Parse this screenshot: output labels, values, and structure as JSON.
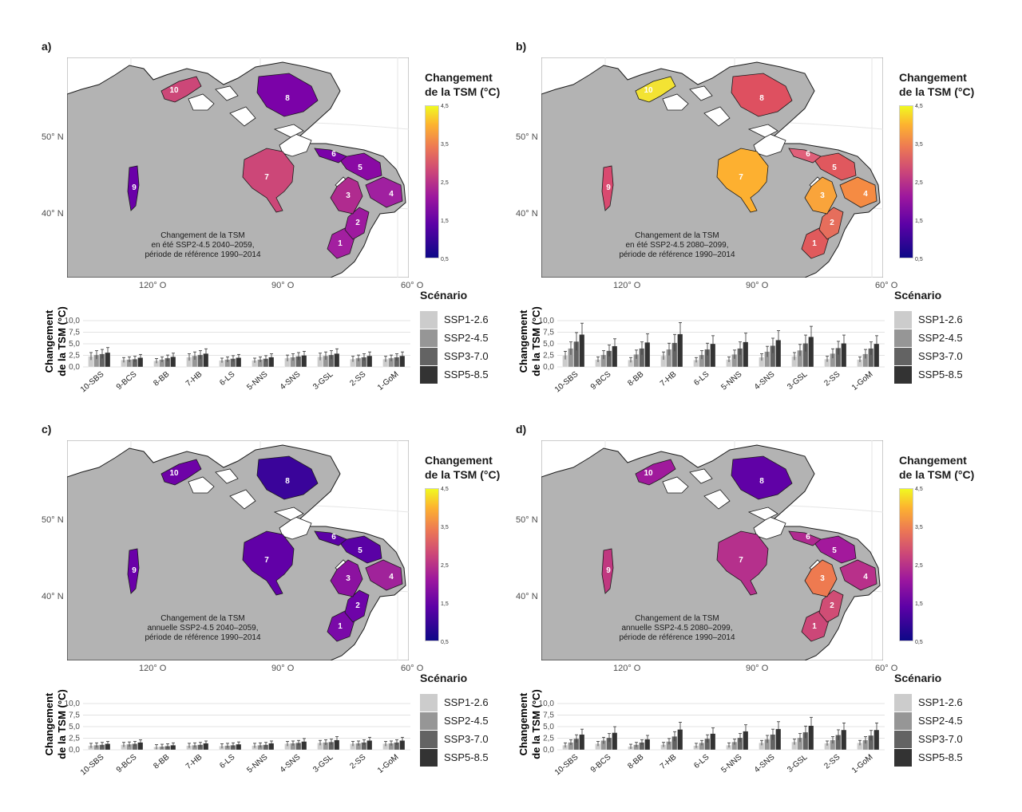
{
  "colorbar": {
    "title_line1": "Changement",
    "title_line2": "de la TSM (°C)",
    "ticks": [
      "4,5",
      "3,5",
      "2,5",
      "1,5",
      "0,5"
    ]
  },
  "lat_labels": [
    "50° N",
    "40° N"
  ],
  "lon_labels": [
    "120° O",
    "90° O",
    "60° O"
  ],
  "bar_ylabel_line1": "Changement",
  "bar_ylabel_line2": "de la TSM (°C)",
  "bar_yticks": [
    "10,0",
    "7,5",
    "5,0",
    "2,5",
    "0,0"
  ],
  "legend": {
    "title": "Scénario",
    "items": [
      "SSP1-2.6",
      "SSP2-4.5",
      "SSP3-7.0",
      "SSP5-8.5"
    ],
    "colors": [
      "#cccccc",
      "#969696",
      "#636363",
      "#333333"
    ]
  },
  "panels": [
    {
      "label": "a)",
      "caption": [
        "Changement de la TSM",
        "en été SSP2-4.5 2040–2059,",
        "période de référence 1990–2014"
      ],
      "region_colors": {
        "1": "#a31fa0",
        "2": "#9e1a9f",
        "3": "#b02b8f",
        "4": "#a020a0",
        "5": "#8a0aa4",
        "6": "#7a02a8",
        "7": "#cc4778",
        "8": "#7b02a8",
        "9": "#6a00a8",
        "10": "#cc4778"
      }
    },
    {
      "label": "b)",
      "caption": [
        "Changement de la TSM",
        "en été SSP2-4.5 2080–2099,",
        "période de référence 1990–2014"
      ],
      "region_colors": {
        "1": "#e05a5c",
        "2": "#e66e5c",
        "3": "#f9a43b",
        "4": "#f58b43",
        "5": "#e0585e",
        "6": "#e0607a",
        "7": "#fdb030",
        "8": "#de5060",
        "9": "#d94a70",
        "10": "#f3e333"
      }
    },
    {
      "label": "c)",
      "caption": [
        "Changement de la TSM",
        "annuelle SSP2-4.5 2040–2059,",
        "période de référence 1990–2014"
      ],
      "region_colors": {
        "1": "#7a0aa8",
        "2": "#6e03a8",
        "3": "#8c12a0",
        "4": "#a0239a",
        "5": "#5a01a5",
        "6": "#5c01a6",
        "7": "#6100a7",
        "8": "#3a049a",
        "9": "#6a00a8",
        "10": "#6e02a7"
      }
    },
    {
      "label": "d)",
      "caption": [
        "Changement de la TSM",
        "annuelle SSP2-4.5 2080–2099,",
        "période de référence 1990–2014"
      ],
      "region_colors": {
        "1": "#cc4778",
        "2": "#d04d75",
        "3": "#ee7a50",
        "4": "#b8308a",
        "5": "#a3199c",
        "6": "#b02a90",
        "7": "#b5308c",
        "8": "#6001a6",
        "9": "#c03880",
        "10": "#a01a9c"
      }
    }
  ],
  "chart_data": [
    {
      "type": "bar",
      "panel": "a",
      "categories": [
        "10-SBS",
        "9-BCS",
        "8-BB",
        "7-HB",
        "6-LS",
        "5-NNS",
        "4-SNS",
        "3-GSL",
        "2-SS",
        "1-GoM"
      ],
      "ylim": [
        0,
        10
      ],
      "series": [
        {
          "name": "SSP1-2.6",
          "values": [
            2.3,
            1.5,
            1.3,
            2.1,
            1.4,
            1.4,
            1.9,
            2.2,
            1.7,
            1.7
          ]
        },
        {
          "name": "SSP2-4.5",
          "values": [
            2.6,
            1.6,
            1.6,
            2.4,
            1.6,
            1.6,
            2.1,
            2.4,
            1.9,
            1.9
          ]
        },
        {
          "name": "SSP3-7.0",
          "values": [
            2.8,
            1.7,
            1.9,
            2.6,
            1.8,
            1.8,
            2.3,
            2.6,
            2.1,
            2.1
          ]
        },
        {
          "name": "SSP5-8.5",
          "values": [
            3.1,
            2.0,
            2.2,
            2.9,
            2.0,
            2.1,
            2.5,
            2.9,
            2.4,
            2.4
          ]
        }
      ]
    },
    {
      "type": "bar",
      "panel": "b",
      "categories": [
        "10-SBS",
        "9-BCS",
        "8-BB",
        "7-HB",
        "6-LS",
        "5-NNS",
        "4-SNS",
        "3-GSL",
        "2-SS",
        "1-GoM"
      ],
      "ylim": [
        0,
        10
      ],
      "series": [
        {
          "name": "SSP1-2.6",
          "values": [
            2.5,
            1.6,
            1.5,
            2.4,
            1.5,
            1.6,
            2.1,
            2.3,
            1.7,
            1.6
          ]
        },
        {
          "name": "SSP2-4.5",
          "values": [
            4.0,
            2.6,
            2.7,
            3.8,
            2.6,
            2.7,
            3.3,
            3.6,
            2.9,
            2.8
          ]
        },
        {
          "name": "SSP3-7.0",
          "values": [
            5.5,
            3.5,
            4.0,
            5.2,
            3.8,
            4.0,
            4.6,
            5.1,
            4.1,
            4.0
          ]
        },
        {
          "name": "SSP5-8.5",
          "values": [
            7.0,
            4.5,
            5.3,
            7.1,
            5.0,
            5.4,
            5.8,
            6.5,
            5.1,
            5.0
          ]
        }
      ]
    },
    {
      "type": "bar",
      "panel": "c",
      "categories": [
        "10-SBS",
        "9-BCS",
        "8-BB",
        "7-HB",
        "6-LS",
        "5-NNS",
        "4-SNS",
        "3-GSL",
        "2-SS",
        "1-GoM"
      ],
      "ylim": [
        0,
        10
      ],
      "series": [
        {
          "name": "SSP1-2.6",
          "values": [
            0.9,
            1.1,
            0.6,
            0.9,
            0.8,
            0.9,
            1.3,
            1.5,
            1.3,
            1.3
          ]
        },
        {
          "name": "SSP2-4.5",
          "values": [
            1.0,
            1.2,
            0.7,
            1.0,
            0.9,
            1.0,
            1.4,
            1.6,
            1.4,
            1.4
          ]
        },
        {
          "name": "SSP3-7.0",
          "values": [
            1.1,
            1.3,
            0.8,
            1.1,
            1.0,
            1.1,
            1.5,
            1.7,
            1.6,
            1.6
          ]
        },
        {
          "name": "SSP5-8.5",
          "values": [
            1.3,
            1.6,
            1.0,
            1.4,
            1.2,
            1.4,
            1.8,
            2.1,
            2.0,
            2.0
          ]
        }
      ]
    },
    {
      "type": "bar",
      "panel": "d",
      "categories": [
        "10-SBS",
        "9-BCS",
        "8-BB",
        "7-HB",
        "6-LS",
        "5-NNS",
        "4-SNS",
        "3-GSL",
        "2-SS",
        "1-GoM"
      ],
      "ylim": [
        0,
        10
      ],
      "series": [
        {
          "name": "SSP1-2.6",
          "values": [
            1.0,
            1.3,
            0.7,
            1.1,
            0.9,
            1.0,
            1.5,
            1.7,
            1.4,
            1.5
          ]
        },
        {
          "name": "SSP2-4.5",
          "values": [
            1.6,
            2.0,
            1.1,
            1.8,
            1.5,
            1.7,
            2.3,
            2.6,
            2.1,
            2.1
          ]
        },
        {
          "name": "SSP3-7.0",
          "values": [
            2.4,
            2.6,
            1.6,
            2.9,
            2.4,
            2.6,
            3.3,
            3.8,
            3.2,
            3.1
          ]
        },
        {
          "name": "SSP5-8.5",
          "values": [
            3.3,
            3.7,
            2.3,
            4.4,
            3.5,
            4.0,
            4.5,
            5.2,
            4.3,
            4.3
          ]
        }
      ]
    }
  ]
}
